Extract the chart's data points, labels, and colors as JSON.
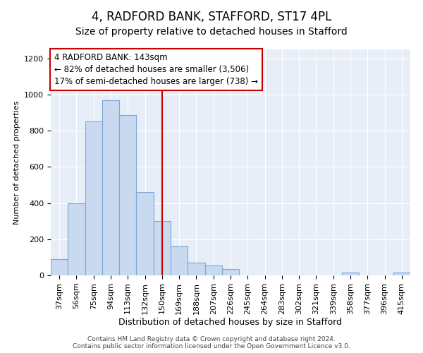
{
  "title": "4, RADFORD BANK, STAFFORD, ST17 4PL",
  "subtitle": "Size of property relative to detached houses in Stafford",
  "xlabel": "Distribution of detached houses by size in Stafford",
  "ylabel": "Number of detached properties",
  "categories": [
    "37sqm",
    "56sqm",
    "75sqm",
    "94sqm",
    "113sqm",
    "132sqm",
    "150sqm",
    "169sqm",
    "188sqm",
    "207sqm",
    "226sqm",
    "245sqm",
    "264sqm",
    "283sqm",
    "302sqm",
    "321sqm",
    "339sqm",
    "358sqm",
    "377sqm",
    "396sqm",
    "415sqm"
  ],
  "values": [
    90,
    400,
    850,
    970,
    885,
    460,
    300,
    160,
    70,
    55,
    35,
    0,
    0,
    0,
    0,
    0,
    0,
    15,
    0,
    0,
    15
  ],
  "bar_color": "#c8d9f0",
  "bar_edge_color": "#7aa8d8",
  "vline_color": "#cc0000",
  "vline_x_index": 6,
  "annotation_line1": "4 RADFORD BANK: 143sqm",
  "annotation_line2": "← 82% of detached houses are smaller (3,506)",
  "annotation_line3": "17% of semi-detached houses are larger (738) →",
  "ylim": [
    0,
    1250
  ],
  "yticks": [
    0,
    200,
    400,
    600,
    800,
    1000,
    1200
  ],
  "background_color": "#e8eef8",
  "grid_color": "#ffffff",
  "footer_text": "Contains HM Land Registry data © Crown copyright and database right 2024.\nContains public sector information licensed under the Open Government Licence v3.0.",
  "title_fontsize": 12,
  "subtitle_fontsize": 10,
  "xlabel_fontsize": 9,
  "ylabel_fontsize": 8,
  "tick_fontsize": 8,
  "annotation_fontsize": 8.5,
  "footer_fontsize": 6.5
}
